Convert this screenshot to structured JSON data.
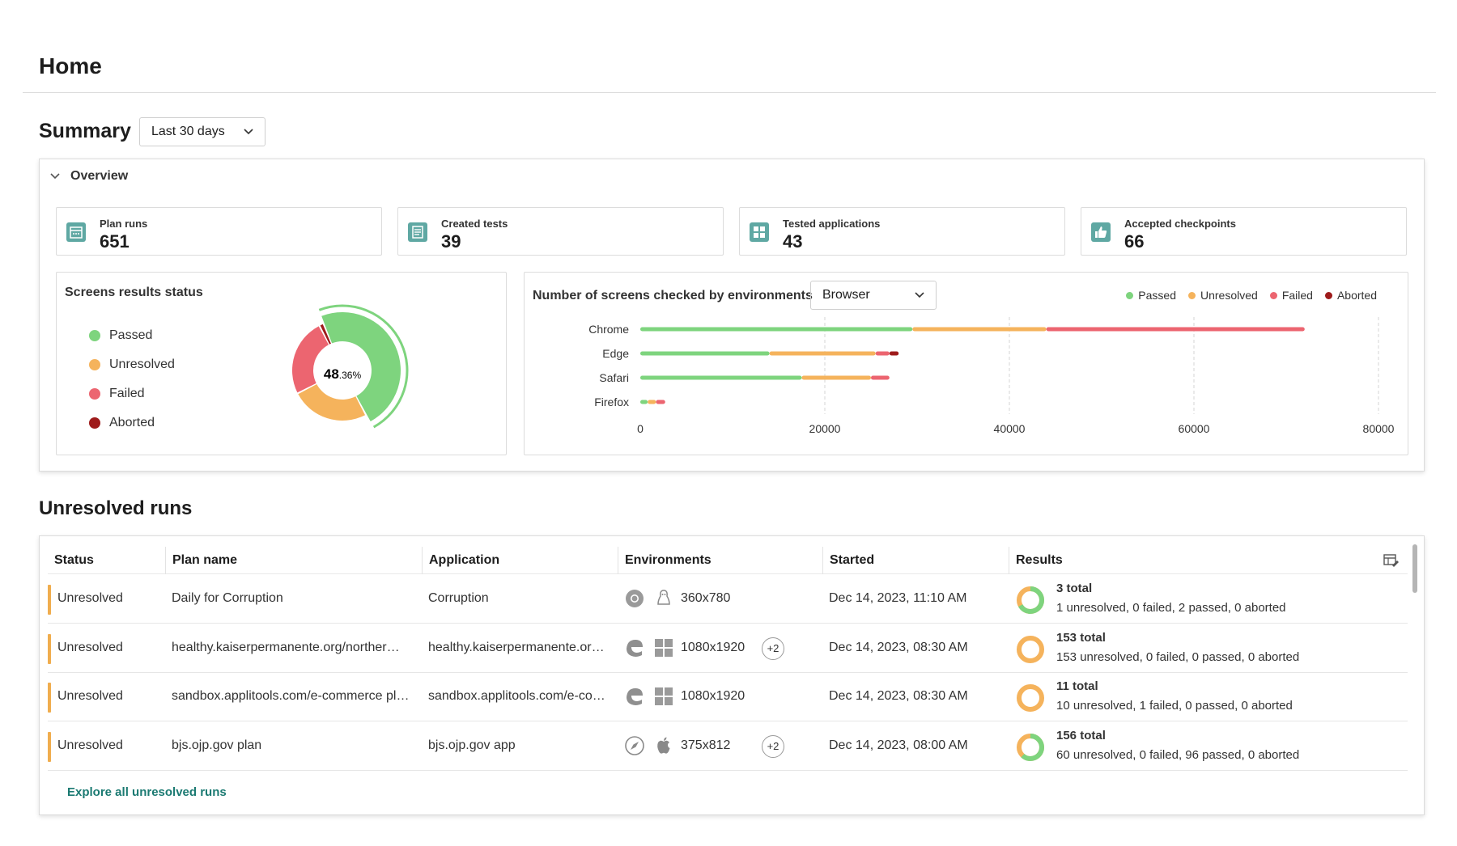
{
  "page": {
    "title": "Home"
  },
  "summary": {
    "title": "Summary",
    "range": "Last 30 days",
    "overview_label": "Overview"
  },
  "stats": [
    {
      "label": "Plan runs",
      "value": "651",
      "icon": "calendar-icon"
    },
    {
      "label": "Created tests",
      "value": "39",
      "icon": "document-icon"
    },
    {
      "label": "Tested applications",
      "value": "43",
      "icon": "grid-icon"
    },
    {
      "label": "Accepted checkpoints",
      "value": "66",
      "icon": "thumbs-up-icon"
    }
  ],
  "screens_status": {
    "title": "Screens results status",
    "center_value": "48",
    "center_suffix": ".36%",
    "legend": [
      "Passed",
      "Unresolved",
      "Failed",
      "Aborted"
    ],
    "colors": {
      "passed": "#7ed47e",
      "unresolved": "#f5b35c",
      "failed": "#ec6570",
      "aborted": "#9e1b1b"
    }
  },
  "env_chart": {
    "title": "Number of screens checked by environments",
    "env_type": "Browser",
    "legend": [
      "Passed",
      "Unresolved",
      "Failed",
      "Aborted"
    ]
  },
  "chart_data": [
    {
      "type": "pie",
      "title": "Screens results status",
      "labels": [
        "Passed",
        "Unresolved",
        "Failed",
        "Aborted"
      ],
      "values": [
        48.36,
        25.2,
        25.0,
        1.44
      ],
      "center_label": "48.36%"
    },
    {
      "type": "bar",
      "orientation": "horizontal",
      "stacked": true,
      "title": "Number of screens checked by environments",
      "categories": [
        "Chrome",
        "Edge",
        "Safari",
        "Firefox"
      ],
      "series": [
        {
          "name": "Passed",
          "values": [
            29500,
            14000,
            17500,
            800
          ]
        },
        {
          "name": "Unresolved",
          "values": [
            14500,
            11500,
            7500,
            900
          ]
        },
        {
          "name": "Failed",
          "values": [
            28000,
            1500,
            2000,
            1000
          ]
        },
        {
          "name": "Aborted",
          "values": [
            0,
            1000,
            0,
            0
          ]
        }
      ],
      "xlim": [
        0,
        80000
      ],
      "xticks": [
        "0",
        "20000",
        "40000",
        "60000",
        "80000"
      ],
      "grid": true,
      "legend_position": "top-right"
    }
  ],
  "unresolved": {
    "title": "Unresolved runs",
    "columns": [
      "Status",
      "Plan name",
      "Application",
      "Environments",
      "Started",
      "Results"
    ],
    "rows": [
      {
        "status": "Unresolved",
        "plan": "Daily for Corruption",
        "app": "Corruption",
        "icons": [
          "chrome-icon",
          "linux-icon"
        ],
        "resolution": "360x780",
        "extra": "",
        "started": "Dec 14, 2023, 11:10 AM",
        "total": "3 total",
        "detail": "1 unresolved,  0 failed,  2 passed,  0 aborted",
        "passed_fraction": 0.67
      },
      {
        "status": "Unresolved",
        "plan": "healthy.kaiserpermanente.org/norther…",
        "app": "healthy.kaiserpermanente.or…",
        "icons": [
          "edge-icon",
          "windows-icon"
        ],
        "resolution": "1080x1920",
        "extra": "+2",
        "started": "Dec 14, 2023, 08:30 AM",
        "total": "153 total",
        "detail": "153 unresolved,  0 failed,  0 passed,  0 aborted",
        "passed_fraction": 0
      },
      {
        "status": "Unresolved",
        "plan": "sandbox.applitools.com/e-commerce pl…",
        "app": "sandbox.applitools.com/e-co…",
        "icons": [
          "edge-icon",
          "windows-icon"
        ],
        "resolution": "1080x1920",
        "extra": "",
        "started": "Dec 14, 2023, 08:30 AM",
        "total": "11 total",
        "detail": "10 unresolved,  1 failed,  0 passed,  0 aborted",
        "passed_fraction": 0
      },
      {
        "status": "Unresolved",
        "plan": "bjs.ojp.gov plan",
        "app": "bjs.ojp.gov app",
        "icons": [
          "safari-icon",
          "apple-icon"
        ],
        "resolution": "375x812",
        "extra": "+2",
        "started": "Dec 14, 2023, 08:00 AM",
        "total": "156 total",
        "detail": "60 unresolved,  0 failed,  96 passed,  0 aborted",
        "passed_fraction": 0.62
      }
    ],
    "explore_label": "Explore all unresolved runs"
  }
}
